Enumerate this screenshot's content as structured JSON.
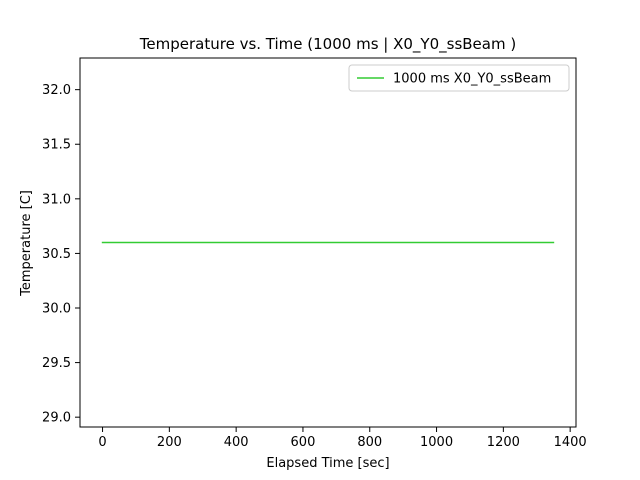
{
  "chart_data": {
    "type": "line",
    "title": "Temperature vs. Time (1000 ms | X0_Y0_ssBeam )",
    "xlabel": "Elapsed Time [sec]",
    "ylabel": "Temperature [C]",
    "xlim": [
      -67.5,
      1417.5
    ],
    "ylim": [
      28.91,
      32.29
    ],
    "xticks": [
      0,
      200,
      400,
      600,
      800,
      1000,
      1200,
      1400
    ],
    "yticks": [
      29.0,
      29.5,
      30.0,
      30.5,
      31.0,
      31.5,
      32.0
    ],
    "xtick_labels": [
      "0",
      "200",
      "400",
      "600",
      "800",
      "1000",
      "1200",
      "1400"
    ],
    "ytick_labels": [
      "29.0",
      "29.5",
      "30.0",
      "30.5",
      "31.0",
      "31.5",
      "32.0"
    ],
    "grid": false,
    "legend_position": "top-right",
    "series": [
      {
        "name": "1000 ms X0_Y0_ssBeam",
        "color": "#33cc33",
        "x": [
          0,
          1350
        ],
        "y": [
          30.6,
          30.6
        ]
      }
    ]
  }
}
